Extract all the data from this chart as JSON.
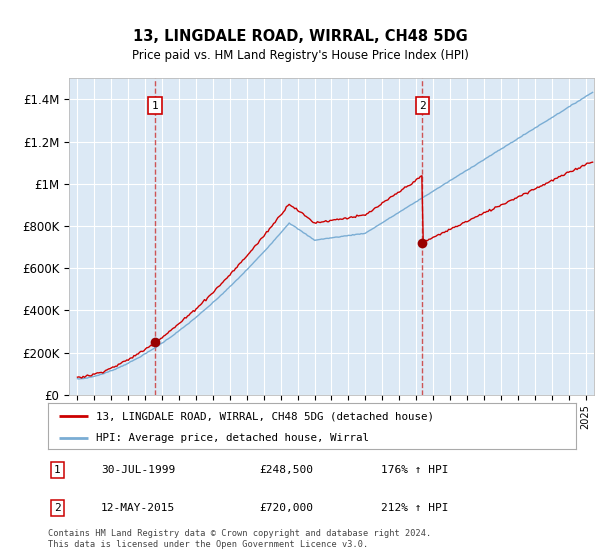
{
  "title": "13, LINGDALE ROAD, WIRRAL, CH48 5DG",
  "subtitle": "Price paid vs. HM Land Registry's House Price Index (HPI)",
  "background_color": "#ffffff",
  "plot_bg_color": "#dce9f5",
  "red_line_color": "#cc0000",
  "blue_line_color": "#7aadd4",
  "marker_color": "#990000",
  "vline_color": "#cc4444",
  "grid_color": "#ffffff",
  "sale1_date": 1999.577,
  "sale1_price": 248500,
  "sale2_date": 2015.36,
  "sale2_price": 720000,
  "legend_entries": [
    "13, LINGDALE ROAD, WIRRAL, CH48 5DG (detached house)",
    "HPI: Average price, detached house, Wirral"
  ],
  "annotations": [
    {
      "num": "1",
      "date": "30-JUL-1999",
      "price": "£248,500",
      "hpi": "176% ↑ HPI"
    },
    {
      "num": "2",
      "date": "12-MAY-2015",
      "price": "£720,000",
      "hpi": "212% ↑ HPI"
    }
  ],
  "footer": "Contains HM Land Registry data © Crown copyright and database right 2024.\nThis data is licensed under the Open Government Licence v3.0.",
  "ylim": [
    0,
    1500000
  ],
  "xlim": [
    1994.5,
    2025.5
  ],
  "yticks": [
    0,
    200000,
    400000,
    600000,
    800000,
    1000000,
    1200000,
    1400000
  ],
  "ytick_labels": [
    "£0",
    "£200K",
    "£400K",
    "£600K",
    "£800K",
    "£1M",
    "£1.2M",
    "£1.4M"
  ]
}
